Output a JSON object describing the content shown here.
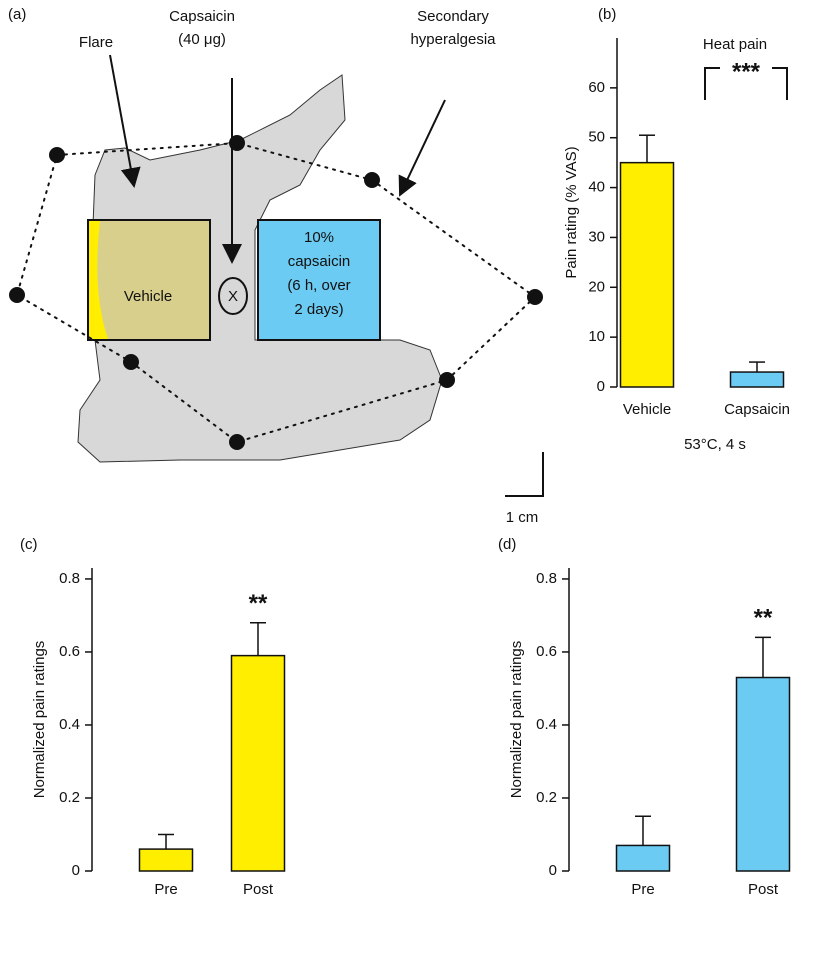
{
  "diagram": {
    "panel_label": "(a)",
    "flare": "Flare",
    "capsaicin_line1": "Capsaicin",
    "capsaicin_line2": "(40 μg)",
    "secondary_line1": "Secondary",
    "secondary_line2": "hyperalgesia",
    "vehicle": "Vehicle",
    "patch_line1": "10%",
    "patch_line2": "capsaicin",
    "patch_line3": "(6 h, over",
    "patch_line4": "2 days)",
    "injection_mark": "X",
    "scale": "1 cm"
  },
  "chart_data": [
    {
      "type": "bar",
      "panel_label": "(b)",
      "title": "Heat pain",
      "ylabel": "Pain rating (% VAS)",
      "xlabel": "53°C, 4 s",
      "categories": [
        "Vehicle",
        "Capsaicin"
      ],
      "values": [
        45,
        3
      ],
      "errors": [
        5.5,
        2
      ],
      "colors": [
        "#ffee00",
        "#6ccbf2"
      ],
      "ylim": [
        0,
        70
      ],
      "yticks": [
        0,
        10,
        20,
        30,
        40,
        50,
        60
      ],
      "annotation": "***"
    },
    {
      "type": "bar",
      "panel_label": "(c)",
      "ylabel": "Normalized pain ratings",
      "categories": [
        "Pre",
        "Post"
      ],
      "values": [
        0.06,
        0.59
      ],
      "errors": [
        0.04,
        0.09
      ],
      "colors": [
        "#ffee00",
        "#ffee00"
      ],
      "ylim": [
        0,
        0.83
      ],
      "yticks": [
        0,
        0.2,
        0.4,
        0.6,
        0.8
      ],
      "annotation": "**"
    },
    {
      "type": "bar",
      "panel_label": "(d)",
      "ylabel": "Normalized pain ratings",
      "categories": [
        "Pre",
        "Post"
      ],
      "values": [
        0.07,
        0.53
      ],
      "errors": [
        0.08,
        0.11
      ],
      "colors": [
        "#6ccbf2",
        "#6ccbf2"
      ],
      "ylim": [
        0,
        0.83
      ],
      "yticks": [
        0,
        0.2,
        0.4,
        0.6,
        0.8
      ],
      "annotation": "**"
    }
  ]
}
